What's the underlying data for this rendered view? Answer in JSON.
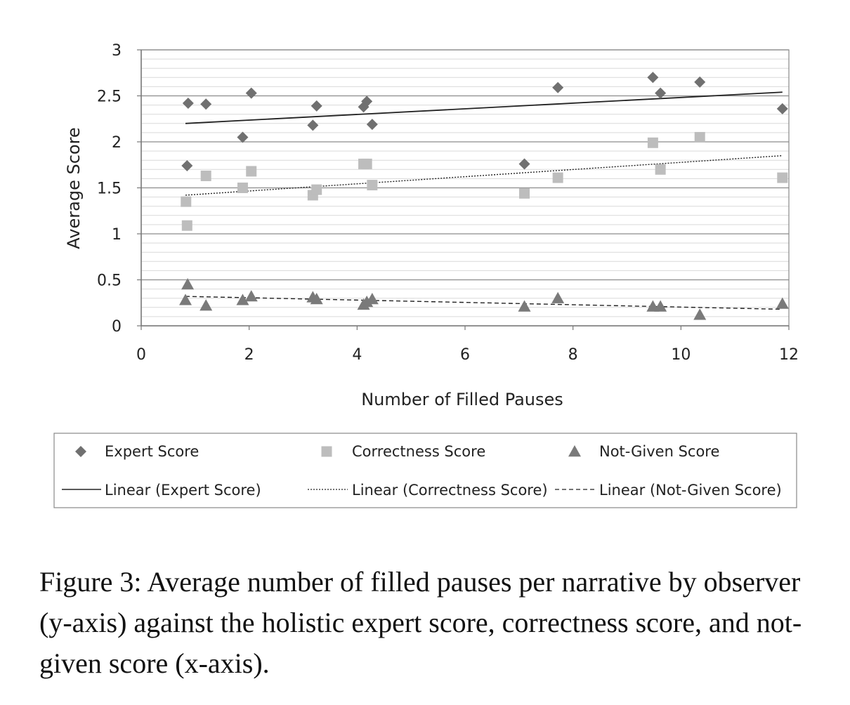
{
  "chart_data": {
    "type": "scatter",
    "xlabel": "Number of Filled Pauses",
    "ylabel": "Average Score",
    "xlim": [
      0,
      12
    ],
    "ylim": [
      0,
      3
    ],
    "x_ticks": [
      0,
      2,
      4,
      6,
      8,
      10,
      12
    ],
    "y_ticks": [
      0,
      0.5,
      1,
      1.5,
      2,
      2.5,
      3
    ],
    "y_tick_labels": [
      "0",
      "0.5",
      "1",
      "1.5",
      "2",
      "2.5",
      "3"
    ],
    "grid": true,
    "legend_position": "bottom",
    "series": [
      {
        "name": "Expert Score",
        "marker": "diamond",
        "color": "#707070",
        "points": [
          [
            0.85,
            1.74
          ],
          [
            0.87,
            2.42
          ],
          [
            1.2,
            2.41
          ],
          [
            1.88,
            2.05
          ],
          [
            2.04,
            2.53
          ],
          [
            3.18,
            2.18
          ],
          [
            3.25,
            2.39
          ],
          [
            4.12,
            2.38
          ],
          [
            4.18,
            2.44
          ],
          [
            4.28,
            2.19
          ],
          [
            7.1,
            1.76
          ],
          [
            7.72,
            2.59
          ],
          [
            9.48,
            2.7
          ],
          [
            9.62,
            2.53
          ],
          [
            10.35,
            2.65
          ],
          [
            11.88,
            2.36
          ]
        ]
      },
      {
        "name": "Correctness Score",
        "marker": "square",
        "color": "#bdbdbd",
        "points": [
          [
            0.83,
            1.35
          ],
          [
            0.85,
            1.09
          ],
          [
            1.2,
            1.63
          ],
          [
            1.88,
            1.5
          ],
          [
            2.04,
            1.68
          ],
          [
            3.18,
            1.42
          ],
          [
            3.25,
            1.48
          ],
          [
            4.12,
            1.76
          ],
          [
            4.18,
            1.76
          ],
          [
            4.28,
            1.53
          ],
          [
            7.1,
            1.44
          ],
          [
            7.72,
            1.61
          ],
          [
            9.48,
            1.99
          ],
          [
            9.62,
            1.7
          ],
          [
            10.35,
            2.05
          ],
          [
            11.88,
            1.61
          ]
        ]
      },
      {
        "name": "Not-Given Score",
        "marker": "triangle",
        "color": "#7a7a7a",
        "points": [
          [
            0.82,
            0.28
          ],
          [
            0.86,
            0.45
          ],
          [
            1.2,
            0.22
          ],
          [
            1.88,
            0.28
          ],
          [
            2.04,
            0.32
          ],
          [
            3.18,
            0.31
          ],
          [
            3.25,
            0.29
          ],
          [
            4.12,
            0.23
          ],
          [
            4.18,
            0.26
          ],
          [
            4.28,
            0.29
          ],
          [
            7.1,
            0.21
          ],
          [
            7.72,
            0.3
          ],
          [
            9.48,
            0.21
          ],
          [
            9.62,
            0.21
          ],
          [
            10.35,
            0.12
          ],
          [
            11.88,
            0.24
          ]
        ]
      }
    ],
    "trendlines": [
      {
        "name": "Linear (Expert Score)",
        "style": "solid",
        "x": [
          0.82,
          11.88
        ],
        "y": [
          2.2,
          2.54
        ]
      },
      {
        "name": "Linear (Correctness Score)",
        "style": "dotted",
        "x": [
          0.82,
          11.88
        ],
        "y": [
          1.42,
          1.85
        ]
      },
      {
        "name": "Linear (Not-Given Score)",
        "style": "dashed",
        "x": [
          0.82,
          11.88
        ],
        "y": [
          0.32,
          0.18
        ]
      }
    ]
  },
  "caption": "Figure 3: Average number of filled pauses per narrative by observer (y-axis) against the holistic expert score, correctness score, and not-given score (x-axis)."
}
